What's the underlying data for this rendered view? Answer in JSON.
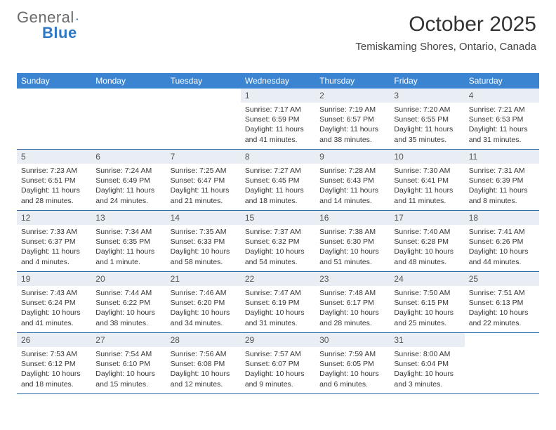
{
  "logo": {
    "textA": "General",
    "textB": "Blue"
  },
  "title": {
    "month": "October 2025",
    "location": "Temiskaming Shores, Ontario, Canada"
  },
  "colors": {
    "header_bg": "#3b84d1",
    "header_text": "#ffffff",
    "daynum_bg": "#e8eef4",
    "week_border": "#2f6aa8",
    "body_text": "#363636",
    "logo_gray": "#6a6a6a",
    "logo_blue": "#2f78c4"
  },
  "daysOfWeek": [
    "Sunday",
    "Monday",
    "Tuesday",
    "Wednesday",
    "Thursday",
    "Friday",
    "Saturday"
  ],
  "weeks": [
    [
      {
        "num": "",
        "lines": []
      },
      {
        "num": "",
        "lines": []
      },
      {
        "num": "",
        "lines": []
      },
      {
        "num": "1",
        "lines": [
          "Sunrise: 7:17 AM",
          "Sunset: 6:59 PM",
          "Daylight: 11 hours and 41 minutes."
        ]
      },
      {
        "num": "2",
        "lines": [
          "Sunrise: 7:19 AM",
          "Sunset: 6:57 PM",
          "Daylight: 11 hours and 38 minutes."
        ]
      },
      {
        "num": "3",
        "lines": [
          "Sunrise: 7:20 AM",
          "Sunset: 6:55 PM",
          "Daylight: 11 hours and 35 minutes."
        ]
      },
      {
        "num": "4",
        "lines": [
          "Sunrise: 7:21 AM",
          "Sunset: 6:53 PM",
          "Daylight: 11 hours and 31 minutes."
        ]
      }
    ],
    [
      {
        "num": "5",
        "lines": [
          "Sunrise: 7:23 AM",
          "Sunset: 6:51 PM",
          "Daylight: 11 hours and 28 minutes."
        ]
      },
      {
        "num": "6",
        "lines": [
          "Sunrise: 7:24 AM",
          "Sunset: 6:49 PM",
          "Daylight: 11 hours and 24 minutes."
        ]
      },
      {
        "num": "7",
        "lines": [
          "Sunrise: 7:25 AM",
          "Sunset: 6:47 PM",
          "Daylight: 11 hours and 21 minutes."
        ]
      },
      {
        "num": "8",
        "lines": [
          "Sunrise: 7:27 AM",
          "Sunset: 6:45 PM",
          "Daylight: 11 hours and 18 minutes."
        ]
      },
      {
        "num": "9",
        "lines": [
          "Sunrise: 7:28 AM",
          "Sunset: 6:43 PM",
          "Daylight: 11 hours and 14 minutes."
        ]
      },
      {
        "num": "10",
        "lines": [
          "Sunrise: 7:30 AM",
          "Sunset: 6:41 PM",
          "Daylight: 11 hours and 11 minutes."
        ]
      },
      {
        "num": "11",
        "lines": [
          "Sunrise: 7:31 AM",
          "Sunset: 6:39 PM",
          "Daylight: 11 hours and 8 minutes."
        ]
      }
    ],
    [
      {
        "num": "12",
        "lines": [
          "Sunrise: 7:33 AM",
          "Sunset: 6:37 PM",
          "Daylight: 11 hours and 4 minutes."
        ]
      },
      {
        "num": "13",
        "lines": [
          "Sunrise: 7:34 AM",
          "Sunset: 6:35 PM",
          "Daylight: 11 hours and 1 minute."
        ]
      },
      {
        "num": "14",
        "lines": [
          "Sunrise: 7:35 AM",
          "Sunset: 6:33 PM",
          "Daylight: 10 hours and 58 minutes."
        ]
      },
      {
        "num": "15",
        "lines": [
          "Sunrise: 7:37 AM",
          "Sunset: 6:32 PM",
          "Daylight: 10 hours and 54 minutes."
        ]
      },
      {
        "num": "16",
        "lines": [
          "Sunrise: 7:38 AM",
          "Sunset: 6:30 PM",
          "Daylight: 10 hours and 51 minutes."
        ]
      },
      {
        "num": "17",
        "lines": [
          "Sunrise: 7:40 AM",
          "Sunset: 6:28 PM",
          "Daylight: 10 hours and 48 minutes."
        ]
      },
      {
        "num": "18",
        "lines": [
          "Sunrise: 7:41 AM",
          "Sunset: 6:26 PM",
          "Daylight: 10 hours and 44 minutes."
        ]
      }
    ],
    [
      {
        "num": "19",
        "lines": [
          "Sunrise: 7:43 AM",
          "Sunset: 6:24 PM",
          "Daylight: 10 hours and 41 minutes."
        ]
      },
      {
        "num": "20",
        "lines": [
          "Sunrise: 7:44 AM",
          "Sunset: 6:22 PM",
          "Daylight: 10 hours and 38 minutes."
        ]
      },
      {
        "num": "21",
        "lines": [
          "Sunrise: 7:46 AM",
          "Sunset: 6:20 PM",
          "Daylight: 10 hours and 34 minutes."
        ]
      },
      {
        "num": "22",
        "lines": [
          "Sunrise: 7:47 AM",
          "Sunset: 6:19 PM",
          "Daylight: 10 hours and 31 minutes."
        ]
      },
      {
        "num": "23",
        "lines": [
          "Sunrise: 7:48 AM",
          "Sunset: 6:17 PM",
          "Daylight: 10 hours and 28 minutes."
        ]
      },
      {
        "num": "24",
        "lines": [
          "Sunrise: 7:50 AM",
          "Sunset: 6:15 PM",
          "Daylight: 10 hours and 25 minutes."
        ]
      },
      {
        "num": "25",
        "lines": [
          "Sunrise: 7:51 AM",
          "Sunset: 6:13 PM",
          "Daylight: 10 hours and 22 minutes."
        ]
      }
    ],
    [
      {
        "num": "26",
        "lines": [
          "Sunrise: 7:53 AM",
          "Sunset: 6:12 PM",
          "Daylight: 10 hours and 18 minutes."
        ]
      },
      {
        "num": "27",
        "lines": [
          "Sunrise: 7:54 AM",
          "Sunset: 6:10 PM",
          "Daylight: 10 hours and 15 minutes."
        ]
      },
      {
        "num": "28",
        "lines": [
          "Sunrise: 7:56 AM",
          "Sunset: 6:08 PM",
          "Daylight: 10 hours and 12 minutes."
        ]
      },
      {
        "num": "29",
        "lines": [
          "Sunrise: 7:57 AM",
          "Sunset: 6:07 PM",
          "Daylight: 10 hours and 9 minutes."
        ]
      },
      {
        "num": "30",
        "lines": [
          "Sunrise: 7:59 AM",
          "Sunset: 6:05 PM",
          "Daylight: 10 hours and 6 minutes."
        ]
      },
      {
        "num": "31",
        "lines": [
          "Sunrise: 8:00 AM",
          "Sunset: 6:04 PM",
          "Daylight: 10 hours and 3 minutes."
        ]
      },
      {
        "num": "",
        "lines": []
      }
    ]
  ]
}
